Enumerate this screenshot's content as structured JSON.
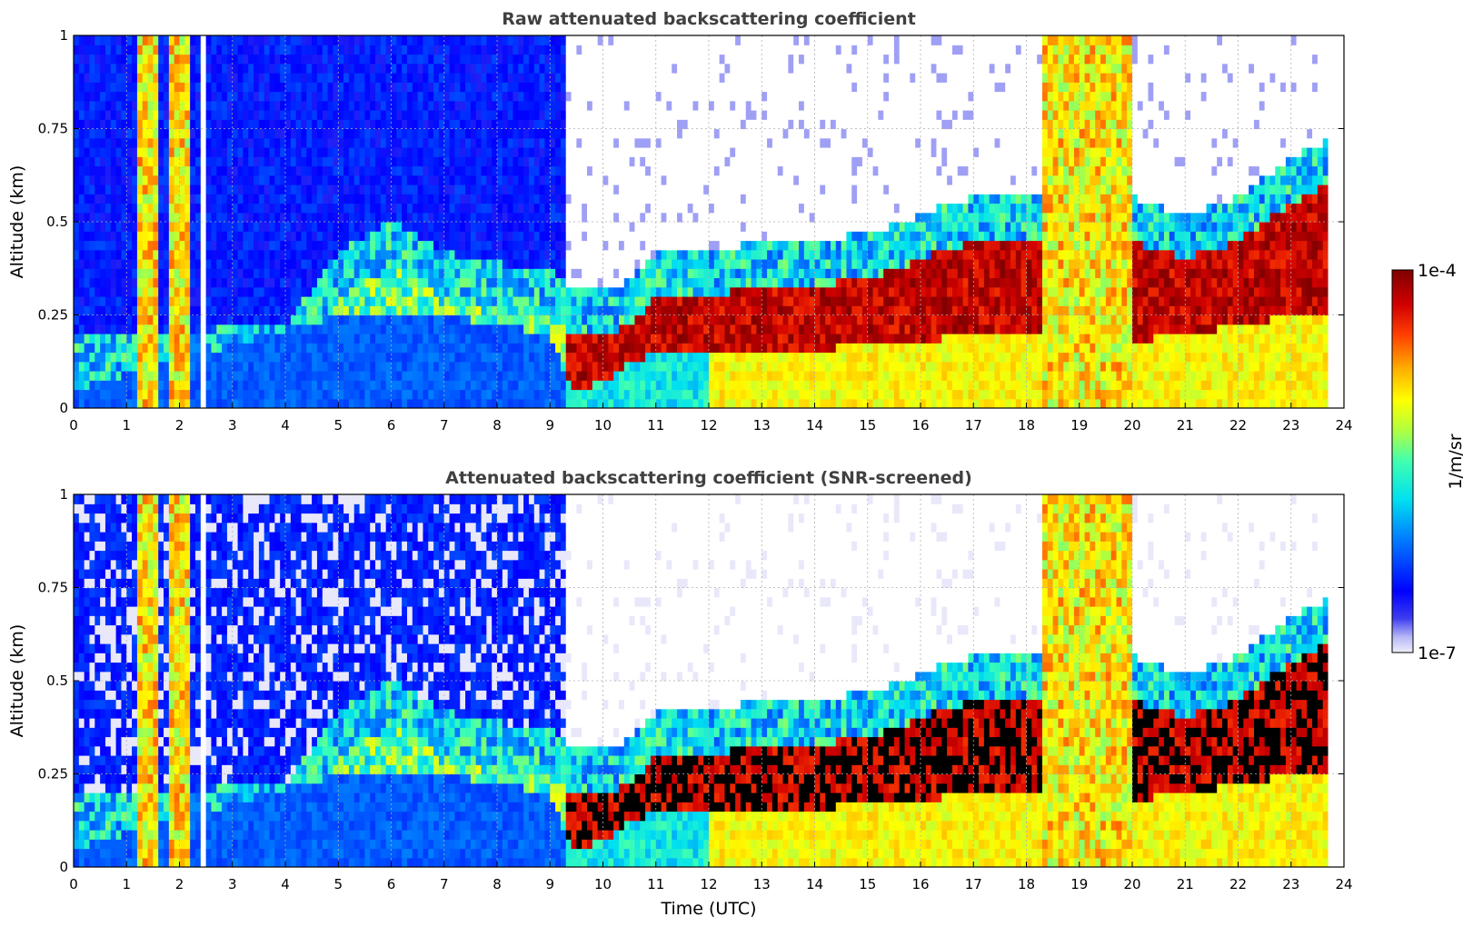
{
  "chart_data": [
    {
      "type": "heatmap",
      "title": "Raw attenuated backscattering coefficient",
      "xlabel": "",
      "ylabel": "Altitude (km)",
      "xlim": [
        0,
        24
      ],
      "ylim": [
        0,
        1
      ],
      "x_ticks": [
        "0",
        "1",
        "2",
        "3",
        "4",
        "5",
        "6",
        "7",
        "8",
        "9",
        "10",
        "11",
        "12",
        "13",
        "14",
        "15",
        "16",
        "17",
        "18",
        "19",
        "20",
        "21",
        "22",
        "23",
        "24"
      ],
      "y_ticks": [
        "0",
        "0.25",
        "0.5",
        "0.75",
        "1"
      ],
      "grid": true,
      "screened": false,
      "layer_top_km": [
        [
          0,
          0.08
        ],
        [
          1,
          0.08
        ],
        [
          2,
          0.08
        ],
        [
          3,
          0.1
        ],
        [
          4,
          0.1
        ],
        [
          5,
          0.3
        ],
        [
          6,
          0.38
        ],
        [
          7,
          0.3
        ],
        [
          8,
          0.27
        ],
        [
          9,
          0.25
        ],
        [
          9.4,
          0.2
        ],
        [
          10,
          0.2
        ],
        [
          10.5,
          0.22
        ],
        [
          11,
          0.3
        ],
        [
          11.5,
          0.3
        ],
        [
          12,
          0.3
        ],
        [
          13,
          0.33
        ],
        [
          14,
          0.33
        ],
        [
          15,
          0.35
        ],
        [
          16,
          0.4
        ],
        [
          17,
          0.45
        ],
        [
          18,
          0.45
        ],
        [
          19,
          0.45
        ],
        [
          20,
          0.45
        ],
        [
          21,
          0.4
        ],
        [
          22,
          0.45
        ],
        [
          23,
          0.55
        ],
        [
          23.7,
          0.6
        ]
      ],
      "layer_base_km": [
        [
          0,
          0.05
        ],
        [
          5,
          0.25
        ],
        [
          7,
          0.25
        ],
        [
          9,
          0.2
        ],
        [
          9.4,
          0.05
        ],
        [
          10,
          0.07
        ],
        [
          10.5,
          0.12
        ],
        [
          11,
          0.15
        ],
        [
          12,
          0.15
        ],
        [
          13,
          0.14
        ],
        [
          14,
          0.15
        ],
        [
          15,
          0.18
        ],
        [
          16,
          0.18
        ],
        [
          17,
          0.2
        ],
        [
          18,
          0.2
        ],
        [
          19,
          0.2
        ],
        [
          20,
          0.18
        ],
        [
          21,
          0.2
        ],
        [
          22,
          0.22
        ],
        [
          23,
          0.25
        ],
        [
          23.7,
          0.25
        ]
      ],
      "tall_columns_utc": [
        [
          1.25,
          1.6
        ],
        [
          1.8,
          2.25
        ],
        [
          18.3,
          20.0
        ]
      ],
      "data_gaps_utc": [
        [
          2.45,
          2.55
        ],
        [
          23.75,
          24
        ]
      ]
    },
    {
      "type": "heatmap",
      "title": "Attenuated backscattering coefficient (SNR-screened)",
      "xlabel": "Time (UTC)",
      "ylabel": "Altitude (km)",
      "xlim": [
        0,
        24
      ],
      "ylim": [
        0,
        1
      ],
      "x_ticks": [
        "0",
        "1",
        "2",
        "3",
        "4",
        "5",
        "6",
        "7",
        "8",
        "9",
        "10",
        "11",
        "12",
        "13",
        "14",
        "15",
        "16",
        "17",
        "18",
        "19",
        "20",
        "21",
        "22",
        "23",
        "24"
      ],
      "y_ticks": [
        "0",
        "0.25",
        "0.5",
        "0.75",
        "1"
      ],
      "grid": true,
      "screened": true,
      "tall_columns_utc": [
        [
          1.25,
          1.6
        ],
        [
          1.8,
          2.25
        ],
        [
          18.3,
          20.0
        ]
      ],
      "data_gaps_utc": [
        [
          2.45,
          2.55
        ],
        [
          23.75,
          24
        ]
      ]
    }
  ],
  "colorbar": {
    "label": "1/m/sr",
    "min_label": "1e-7",
    "max_label": "1e-4",
    "colormap": "jet",
    "low_color": "#eeeefc",
    "high_color": "#7f0000"
  },
  "colors": {
    "title": "#404040",
    "grid": "#b0b0b0",
    "clear_sky": "#ffffff",
    "low_signal": "#e6e6fa",
    "screened_saturation": "#000000"
  }
}
